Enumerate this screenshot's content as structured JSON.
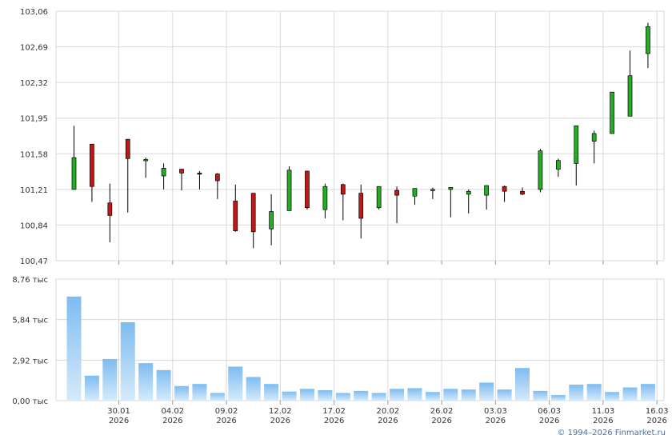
{
  "copyright": "© 1994–2026 Finmarket.ru",
  "colors": {
    "up": "#22b022",
    "down": "#c01818",
    "volume_top": "#7dbcf0",
    "volume_bottom": "#d6eafb",
    "grid": "#d9d9d9",
    "axis_text": "#333333"
  },
  "chart_data": [
    {
      "type": "candlestick",
      "name": "price",
      "ylim": [
        100.47,
        103.06
      ],
      "ytick_labels": [
        "103,06",
        "102,69",
        "102,32",
        "101,95",
        "101,58",
        "101,21",
        "100,84",
        "100,47"
      ],
      "grid": true,
      "candles": [
        {
          "o": 101.21,
          "h": 101.87,
          "l": 101.21,
          "c": 101.54
        },
        {
          "o": 101.68,
          "h": 101.68,
          "l": 101.08,
          "c": 101.24
        },
        {
          "o": 101.07,
          "h": 101.27,
          "l": 100.66,
          "c": 100.94
        },
        {
          "o": 101.73,
          "h": 101.73,
          "l": 100.97,
          "c": 101.53
        },
        {
          "o": 101.51,
          "h": 101.54,
          "l": 101.33,
          "c": 101.52
        },
        {
          "o": 101.35,
          "h": 101.48,
          "l": 101.21,
          "c": 101.43
        },
        {
          "o": 101.42,
          "h": 101.42,
          "l": 101.2,
          "c": 101.38
        },
        {
          "o": 101.38,
          "h": 101.4,
          "l": 101.21,
          "c": 101.37
        },
        {
          "o": 101.37,
          "h": 101.38,
          "l": 101.11,
          "c": 101.3
        },
        {
          "o": 101.09,
          "h": 101.26,
          "l": 100.77,
          "c": 100.78
        },
        {
          "o": 101.17,
          "h": 101.17,
          "l": 100.6,
          "c": 100.77
        },
        {
          "o": 100.8,
          "h": 101.16,
          "l": 100.63,
          "c": 100.98
        },
        {
          "o": 100.99,
          "h": 101.45,
          "l": 100.99,
          "c": 101.41
        },
        {
          "o": 101.4,
          "h": 101.4,
          "l": 101.0,
          "c": 101.02
        },
        {
          "o": 101.0,
          "h": 101.27,
          "l": 100.91,
          "c": 101.24
        },
        {
          "o": 101.26,
          "h": 101.27,
          "l": 100.89,
          "c": 101.16
        },
        {
          "o": 101.17,
          "h": 101.26,
          "l": 100.7,
          "c": 100.91
        },
        {
          "o": 101.02,
          "h": 101.24,
          "l": 101.0,
          "c": 101.24
        },
        {
          "o": 101.2,
          "h": 101.24,
          "l": 100.86,
          "c": 101.15
        },
        {
          "o": 101.14,
          "h": 101.22,
          "l": 101.05,
          "c": 101.22
        },
        {
          "o": 101.2,
          "h": 101.23,
          "l": 101.11,
          "c": 101.21
        },
        {
          "o": 101.21,
          "h": 101.23,
          "l": 100.92,
          "c": 101.23
        },
        {
          "o": 101.16,
          "h": 101.21,
          "l": 100.96,
          "c": 101.19
        },
        {
          "o": 101.15,
          "h": 101.25,
          "l": 101.0,
          "c": 101.25
        },
        {
          "o": 101.24,
          "h": 101.25,
          "l": 101.08,
          "c": 101.19
        },
        {
          "o": 101.19,
          "h": 101.23,
          "l": 101.15,
          "c": 101.16
        },
        {
          "o": 101.21,
          "h": 101.63,
          "l": 101.18,
          "c": 101.61
        },
        {
          "o": 101.42,
          "h": 101.53,
          "l": 101.34,
          "c": 101.51
        },
        {
          "o": 101.48,
          "h": 101.87,
          "l": 101.25,
          "c": 101.87
        },
        {
          "o": 101.71,
          "h": 101.82,
          "l": 101.48,
          "c": 101.79
        },
        {
          "o": 101.79,
          "h": 102.22,
          "l": 101.79,
          "c": 102.22
        },
        {
          "o": 101.97,
          "h": 102.65,
          "l": 101.97,
          "c": 102.39
        },
        {
          "o": 102.62,
          "h": 102.94,
          "l": 102.47,
          "c": 102.9
        }
      ],
      "x_ticks": [
        {
          "index": 2.5,
          "date": "30.01",
          "year": "2026"
        },
        {
          "index": 5.5,
          "date": "04.02",
          "year": "2026"
        },
        {
          "index": 8.5,
          "date": "09.02",
          "year": "2026"
        },
        {
          "index": 11.5,
          "date": "12.02",
          "year": "2026"
        },
        {
          "index": 14.5,
          "date": "17.02",
          "year": "2026"
        },
        {
          "index": 17.5,
          "date": "20.02",
          "year": "2026"
        },
        {
          "index": 20.5,
          "date": "26.02",
          "year": "2026"
        },
        {
          "index": 23.5,
          "date": "03.03",
          "year": "2026"
        },
        {
          "index": 26.5,
          "date": "06.03",
          "year": "2026"
        },
        {
          "index": 29.5,
          "date": "11.03",
          "year": "2026"
        },
        {
          "index": 32.5,
          "date": "16.03",
          "year": "2026"
        }
      ]
    },
    {
      "type": "bar",
      "name": "volume",
      "ylim": [
        0,
        8.76
      ],
      "ytick_labels": [
        "8,76 тыс",
        "5,84 тыс",
        "2,92 тыс",
        "0,00 тыс"
      ],
      "grid": true,
      "values": [
        7.5,
        1.8,
        3.0,
        5.65,
        2.7,
        2.2,
        1.05,
        1.2,
        0.55,
        2.45,
        1.7,
        1.2,
        0.65,
        0.85,
        0.75,
        0.55,
        0.7,
        0.55,
        0.85,
        0.9,
        0.62,
        0.85,
        0.8,
        1.3,
        0.8,
        2.35,
        0.7,
        0.4,
        1.15,
        1.2,
        0.62,
        0.95,
        1.2
      ]
    }
  ]
}
